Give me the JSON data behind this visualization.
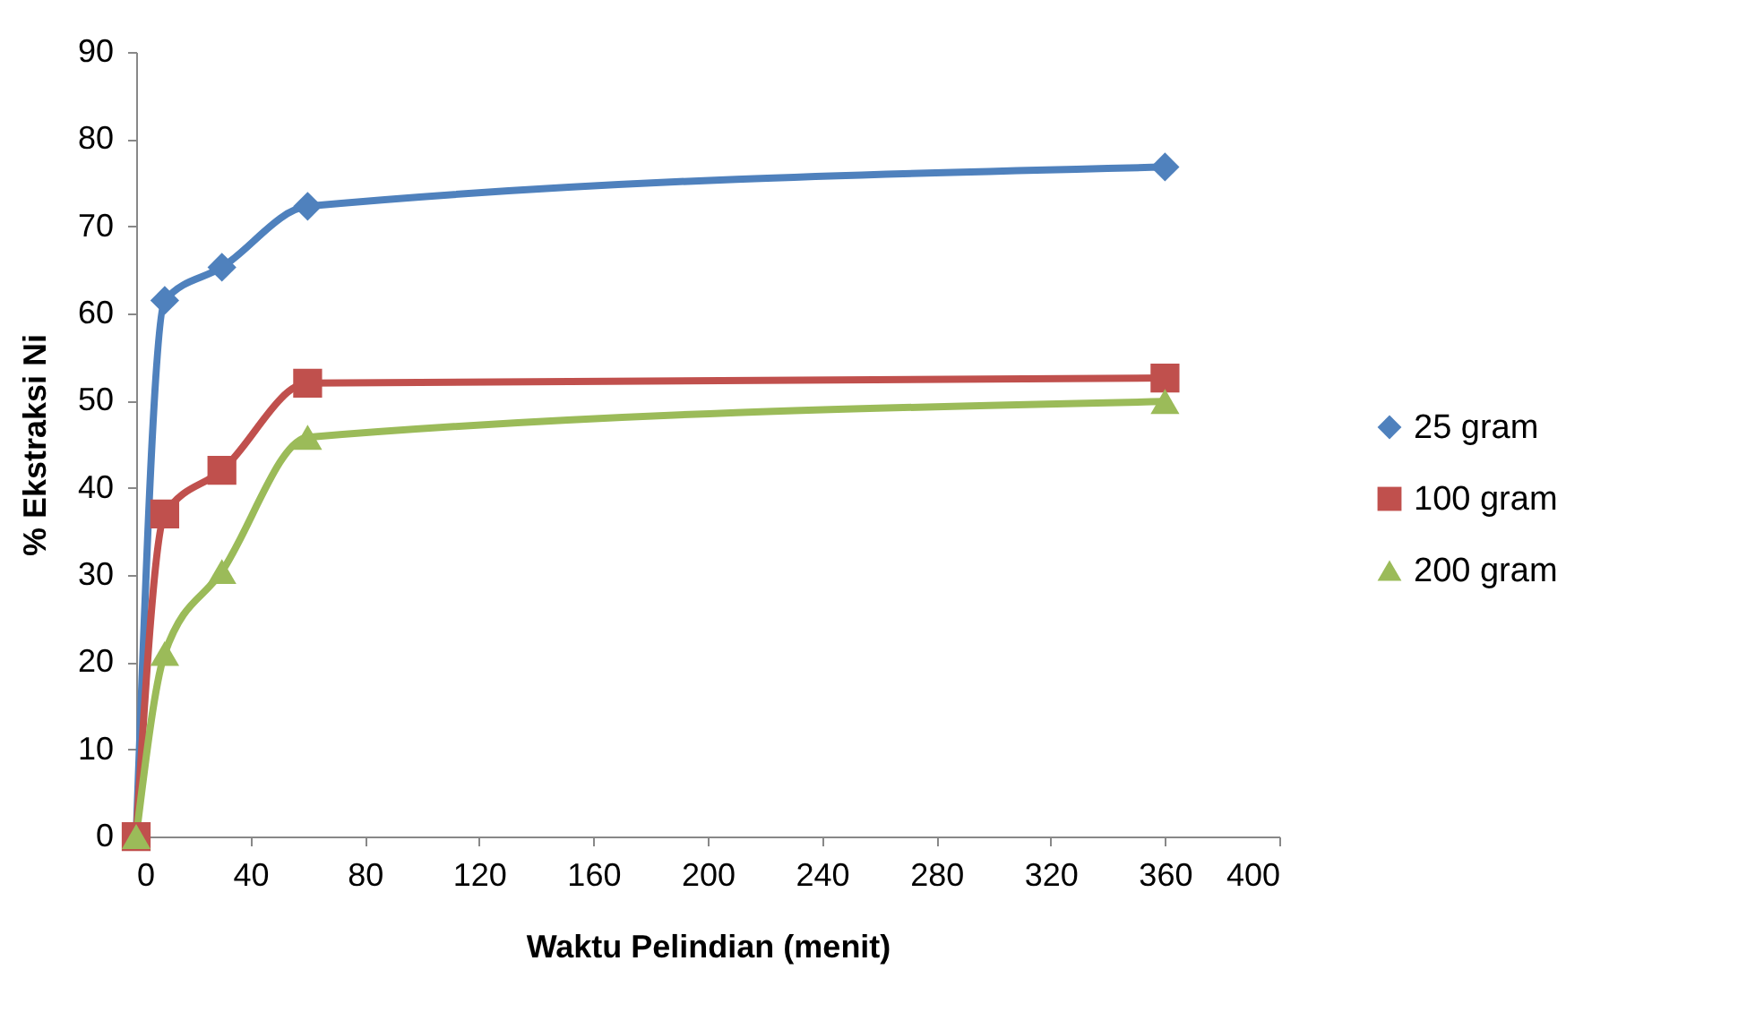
{
  "chart_data": {
    "type": "line",
    "xlabel": "Waktu Pelindian (menit)",
    "ylabel": "% Ekstraksi Ni",
    "xlim": [
      0,
      400
    ],
    "xticks": [
      0,
      40,
      80,
      120,
      160,
      200,
      240,
      280,
      320,
      360,
      400
    ],
    "ylim": [
      0,
      90
    ],
    "yticks": [
      0,
      10,
      20,
      30,
      40,
      50,
      60,
      70,
      80,
      90
    ],
    "grid": false,
    "legend": "right",
    "series": [
      {
        "name": "25 gram",
        "color": "#4f81bd",
        "marker": "diamond",
        "x": [
          0,
          10,
          30,
          60,
          360
        ],
        "values": [
          0,
          61.5,
          65.3,
          72.3,
          76.8
        ]
      },
      {
        "name": "100 gram",
        "color": "#c0504d",
        "marker": "square",
        "x": [
          0,
          10,
          30,
          60,
          360
        ],
        "values": [
          0,
          37,
          42,
          52,
          52.6
        ]
      },
      {
        "name": "200 gram",
        "color": "#9bbb59",
        "marker": "triangle",
        "x": [
          0,
          10,
          30,
          60,
          360
        ],
        "values": [
          0,
          21,
          30.4,
          45.8,
          49.9
        ]
      }
    ]
  }
}
